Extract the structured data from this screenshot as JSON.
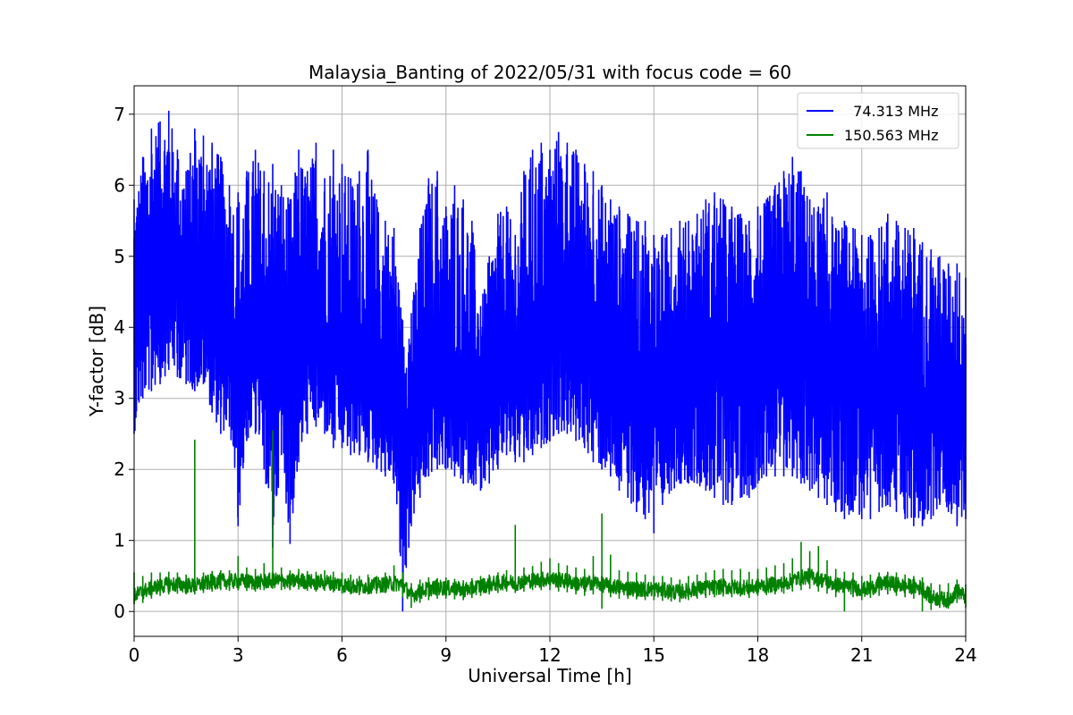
{
  "chart_data": {
    "type": "line",
    "title": "Malaysia_Banting of 2022/05/31 with focus code = 60",
    "xlabel": "Universal Time [h]",
    "ylabel": "Y-factor [dB]",
    "xlim": [
      0,
      24
    ],
    "ylim": [
      -0.35,
      7.4
    ],
    "xticks": [
      0,
      3,
      6,
      9,
      12,
      15,
      18,
      21,
      24
    ],
    "yticks": [
      0,
      1,
      2,
      3,
      4,
      5,
      6,
      7
    ],
    "grid": true,
    "legend_position": "top-right",
    "series": [
      {
        "name": "  74.313 MHz",
        "color": "#0000ff",
        "x": [
          0,
          0.25,
          0.5,
          0.75,
          1,
          1.25,
          1.5,
          1.75,
          2,
          2.25,
          2.5,
          2.75,
          3,
          3.25,
          3.5,
          3.75,
          4,
          4.25,
          4.5,
          4.75,
          5,
          5.25,
          5.5,
          5.75,
          6,
          6.25,
          6.5,
          6.75,
          7,
          7.25,
          7.5,
          7.75,
          8,
          8.25,
          8.5,
          8.75,
          9,
          9.25,
          9.5,
          9.75,
          10,
          10.25,
          10.5,
          10.75,
          11,
          11.25,
          11.5,
          11.75,
          12,
          12.25,
          12.5,
          12.75,
          13,
          13.25,
          13.5,
          13.75,
          14,
          14.25,
          14.5,
          14.75,
          15,
          15.25,
          15.5,
          15.75,
          16,
          16.25,
          16.5,
          16.75,
          17,
          17.25,
          17.5,
          17.75,
          18,
          18.25,
          18.5,
          18.75,
          19,
          19.25,
          19.5,
          19.75,
          20,
          20.25,
          20.5,
          20.75,
          21,
          21.25,
          21.5,
          21.75,
          22,
          22.25,
          22.5,
          22.75,
          23,
          23.25,
          23.5,
          23.75,
          24
        ],
        "y_mean": [
          3.9,
          4.2,
          4.5,
          4.8,
          5.0,
          4.7,
          4.5,
          4.4,
          4.3,
          4.1,
          3.9,
          3.7,
          3.0,
          3.5,
          3.8,
          3.6,
          2.9,
          3.6,
          2.8,
          3.4,
          3.7,
          3.9,
          3.8,
          3.6,
          3.5,
          3.4,
          3.3,
          3.3,
          3.2,
          3.0,
          3.0,
          2.7,
          2.6,
          2.9,
          3.0,
          3.1,
          3.1,
          3.0,
          2.9,
          2.9,
          2.8,
          2.9,
          3.2,
          3.5,
          3.4,
          3.3,
          3.3,
          3.4,
          3.7,
          3.9,
          4.0,
          3.9,
          3.7,
          3.6,
          3.5,
          3.4,
          3.3,
          3.2,
          3.1,
          3.0,
          2.9,
          3.0,
          3.2,
          3.3,
          3.3,
          3.4,
          3.4,
          3.4,
          3.5,
          3.6,
          3.5,
          3.4,
          3.4,
          3.4,
          3.5,
          3.6,
          3.6,
          3.7,
          3.7,
          3.6,
          3.5,
          3.4,
          3.3,
          3.3,
          3.2,
          3.3,
          3.4,
          3.3,
          3.2,
          3.1,
          3.0,
          3.0,
          2.9,
          2.8,
          2.8,
          2.9,
          2.9
        ],
        "y_max": [
          5.8,
          6.4,
          6.8,
          6.9,
          7.05,
          6.5,
          6.2,
          6.8,
          6.7,
          6.6,
          6.4,
          6.0,
          5.9,
          6.2,
          6.5,
          6.2,
          6.3,
          6.0,
          5.8,
          6.5,
          6.2,
          6.6,
          6.1,
          6.5,
          6.3,
          6.1,
          6.2,
          6.5,
          5.8,
          5.5,
          5.4,
          4.1,
          4.2,
          5.4,
          6.1,
          6.2,
          5.7,
          6.0,
          5.8,
          5.5,
          4.3,
          5.0,
          5.6,
          5.7,
          5.3,
          6.2,
          6.5,
          6.6,
          6.5,
          6.75,
          6.6,
          6.5,
          6.3,
          6.2,
          6.0,
          5.8,
          5.7,
          5.6,
          5.5,
          5.5,
          5.3,
          5.3,
          5.4,
          5.5,
          5.5,
          5.6,
          5.8,
          5.9,
          5.8,
          5.7,
          5.6,
          5.5,
          5.7,
          5.8,
          6.0,
          6.2,
          6.4,
          6.2,
          5.8,
          5.7,
          5.9,
          5.4,
          5.5,
          5.4,
          5.3,
          5.3,
          5.4,
          5.6,
          5.5,
          5.4,
          5.4,
          5.2,
          5.1,
          5.0,
          4.9,
          4.9,
          4.7
        ],
        "y_min": [
          2.5,
          3.0,
          3.1,
          3.2,
          3.4,
          3.3,
          3.2,
          3.1,
          3.2,
          2.8,
          2.5,
          2.6,
          1.2,
          2.4,
          2.5,
          2.0,
          0.9,
          2.2,
          0.95,
          2.1,
          2.5,
          2.6,
          2.5,
          2.3,
          2.3,
          2.2,
          2.2,
          2.1,
          2.0,
          1.9,
          1.8,
          0.0,
          1.2,
          1.6,
          1.9,
          2.0,
          2.0,
          1.9,
          1.8,
          1.8,
          1.7,
          1.8,
          2.0,
          2.2,
          2.1,
          2.1,
          2.2,
          2.3,
          2.4,
          2.5,
          2.5,
          2.4,
          2.3,
          2.1,
          2.0,
          1.9,
          1.7,
          1.6,
          1.4,
          1.3,
          1.1,
          1.5,
          1.7,
          1.8,
          1.8,
          1.8,
          1.7,
          1.6,
          1.5,
          1.5,
          1.6,
          1.6,
          1.8,
          1.9,
          1.9,
          1.9,
          1.9,
          1.8,
          1.7,
          1.6,
          1.5,
          1.4,
          1.3,
          1.4,
          1.3,
          1.3,
          1.4,
          1.5,
          1.4,
          1.3,
          1.2,
          1.2,
          1.3,
          1.5,
          1.4,
          1.2,
          1.3
        ]
      },
      {
        "name": "150.563 MHz",
        "color": "#008000",
        "x": [
          0,
          0.25,
          0.5,
          0.75,
          1,
          1.25,
          1.5,
          1.75,
          2,
          2.25,
          2.5,
          2.75,
          3,
          3.25,
          3.5,
          3.75,
          4,
          4.25,
          4.5,
          4.75,
          5,
          5.25,
          5.5,
          5.75,
          6,
          6.25,
          6.5,
          6.75,
          7,
          7.25,
          7.5,
          7.75,
          8,
          8.25,
          8.5,
          8.75,
          9,
          9.25,
          9.5,
          9.75,
          10,
          10.25,
          10.5,
          10.75,
          11,
          11.25,
          11.5,
          11.75,
          12,
          12.25,
          12.5,
          12.75,
          13,
          13.25,
          13.5,
          13.75,
          14,
          14.25,
          14.5,
          14.75,
          15,
          15.25,
          15.5,
          15.75,
          16,
          16.25,
          16.5,
          16.75,
          17,
          17.25,
          17.5,
          17.75,
          18,
          18.25,
          18.5,
          18.75,
          19,
          19.25,
          19.5,
          19.75,
          20,
          20.25,
          20.5,
          20.75,
          21,
          21.25,
          21.5,
          21.75,
          22,
          22.25,
          22.5,
          22.75,
          23,
          23.25,
          23.5,
          23.75,
          24
        ],
        "y_mean": [
          0.22,
          0.28,
          0.33,
          0.36,
          0.38,
          0.38,
          0.37,
          0.36,
          0.39,
          0.42,
          0.43,
          0.42,
          0.43,
          0.42,
          0.41,
          0.42,
          0.44,
          0.43,
          0.42,
          0.44,
          0.42,
          0.41,
          0.42,
          0.4,
          0.38,
          0.36,
          0.35,
          0.36,
          0.37,
          0.38,
          0.4,
          0.38,
          0.22,
          0.28,
          0.32,
          0.34,
          0.33,
          0.32,
          0.3,
          0.33,
          0.36,
          0.38,
          0.4,
          0.42,
          0.4,
          0.43,
          0.44,
          0.45,
          0.46,
          0.44,
          0.43,
          0.4,
          0.38,
          0.42,
          0.38,
          0.36,
          0.34,
          0.33,
          0.32,
          0.31,
          0.32,
          0.3,
          0.28,
          0.27,
          0.3,
          0.32,
          0.33,
          0.34,
          0.35,
          0.34,
          0.35,
          0.33,
          0.36,
          0.37,
          0.38,
          0.39,
          0.44,
          0.48,
          0.5,
          0.46,
          0.42,
          0.38,
          0.36,
          0.35,
          0.3,
          0.33,
          0.38,
          0.4,
          0.38,
          0.36,
          0.35,
          0.33,
          0.2,
          0.18,
          0.16,
          0.3,
          0.2
        ],
        "y_max": [
          0.55,
          0.5,
          0.55,
          0.55,
          0.56,
          0.55,
          0.52,
          2.42,
          0.55,
          0.57,
          0.58,
          0.58,
          0.78,
          0.62,
          0.6,
          0.68,
          2.55,
          0.62,
          0.58,
          0.6,
          0.57,
          0.56,
          0.58,
          0.56,
          0.55,
          0.52,
          0.5,
          0.52,
          0.5,
          0.55,
          0.65,
          0.55,
          0.4,
          0.45,
          0.48,
          0.47,
          0.48,
          0.46,
          0.44,
          0.47,
          0.5,
          0.52,
          0.55,
          0.58,
          1.22,
          0.62,
          0.64,
          0.7,
          0.75,
          0.68,
          0.65,
          0.62,
          0.6,
          0.78,
          1.38,
          0.8,
          0.58,
          0.56,
          0.55,
          0.52,
          0.5,
          0.5,
          0.48,
          0.45,
          0.5,
          0.52,
          0.55,
          0.58,
          0.6,
          0.58,
          0.6,
          0.56,
          0.6,
          0.62,
          0.65,
          0.68,
          0.75,
          0.98,
          0.85,
          0.92,
          0.72,
          0.6,
          0.56,
          0.55,
          0.5,
          0.52,
          0.55,
          0.56,
          0.55,
          0.52,
          0.5,
          0.48,
          0.4,
          0.38,
          0.4,
          0.45,
          0.38
        ],
        "y_min": [
          0.1,
          0.12,
          0.18,
          0.22,
          0.24,
          0.25,
          0.24,
          0.24,
          0.26,
          0.28,
          0.3,
          0.29,
          0.3,
          0.29,
          0.28,
          0.3,
          0.32,
          0.3,
          0.3,
          0.31,
          0.29,
          0.28,
          0.29,
          0.27,
          0.25,
          0.24,
          0.23,
          0.24,
          0.25,
          0.26,
          0.28,
          0.2,
          0.05,
          0.12,
          0.16,
          0.18,
          0.18,
          0.17,
          0.16,
          0.19,
          0.22,
          0.24,
          0.26,
          0.28,
          0.26,
          0.28,
          0.3,
          0.3,
          0.3,
          0.28,
          0.27,
          0.24,
          0.22,
          0.24,
          0.04,
          0.2,
          0.18,
          0.18,
          0.17,
          0.16,
          0.16,
          0.15,
          0.14,
          0.13,
          0.16,
          0.18,
          0.19,
          0.2,
          0.21,
          0.2,
          0.21,
          0.19,
          0.22,
          0.23,
          0.24,
          0.25,
          0.28,
          0.3,
          0.32,
          0.28,
          0.25,
          0.2,
          0.0,
          0.2,
          0.16,
          0.19,
          0.22,
          0.24,
          0.22,
          0.2,
          0.18,
          0.0,
          0.02,
          0.05,
          0.04,
          0.12,
          0.05
        ]
      }
    ]
  }
}
